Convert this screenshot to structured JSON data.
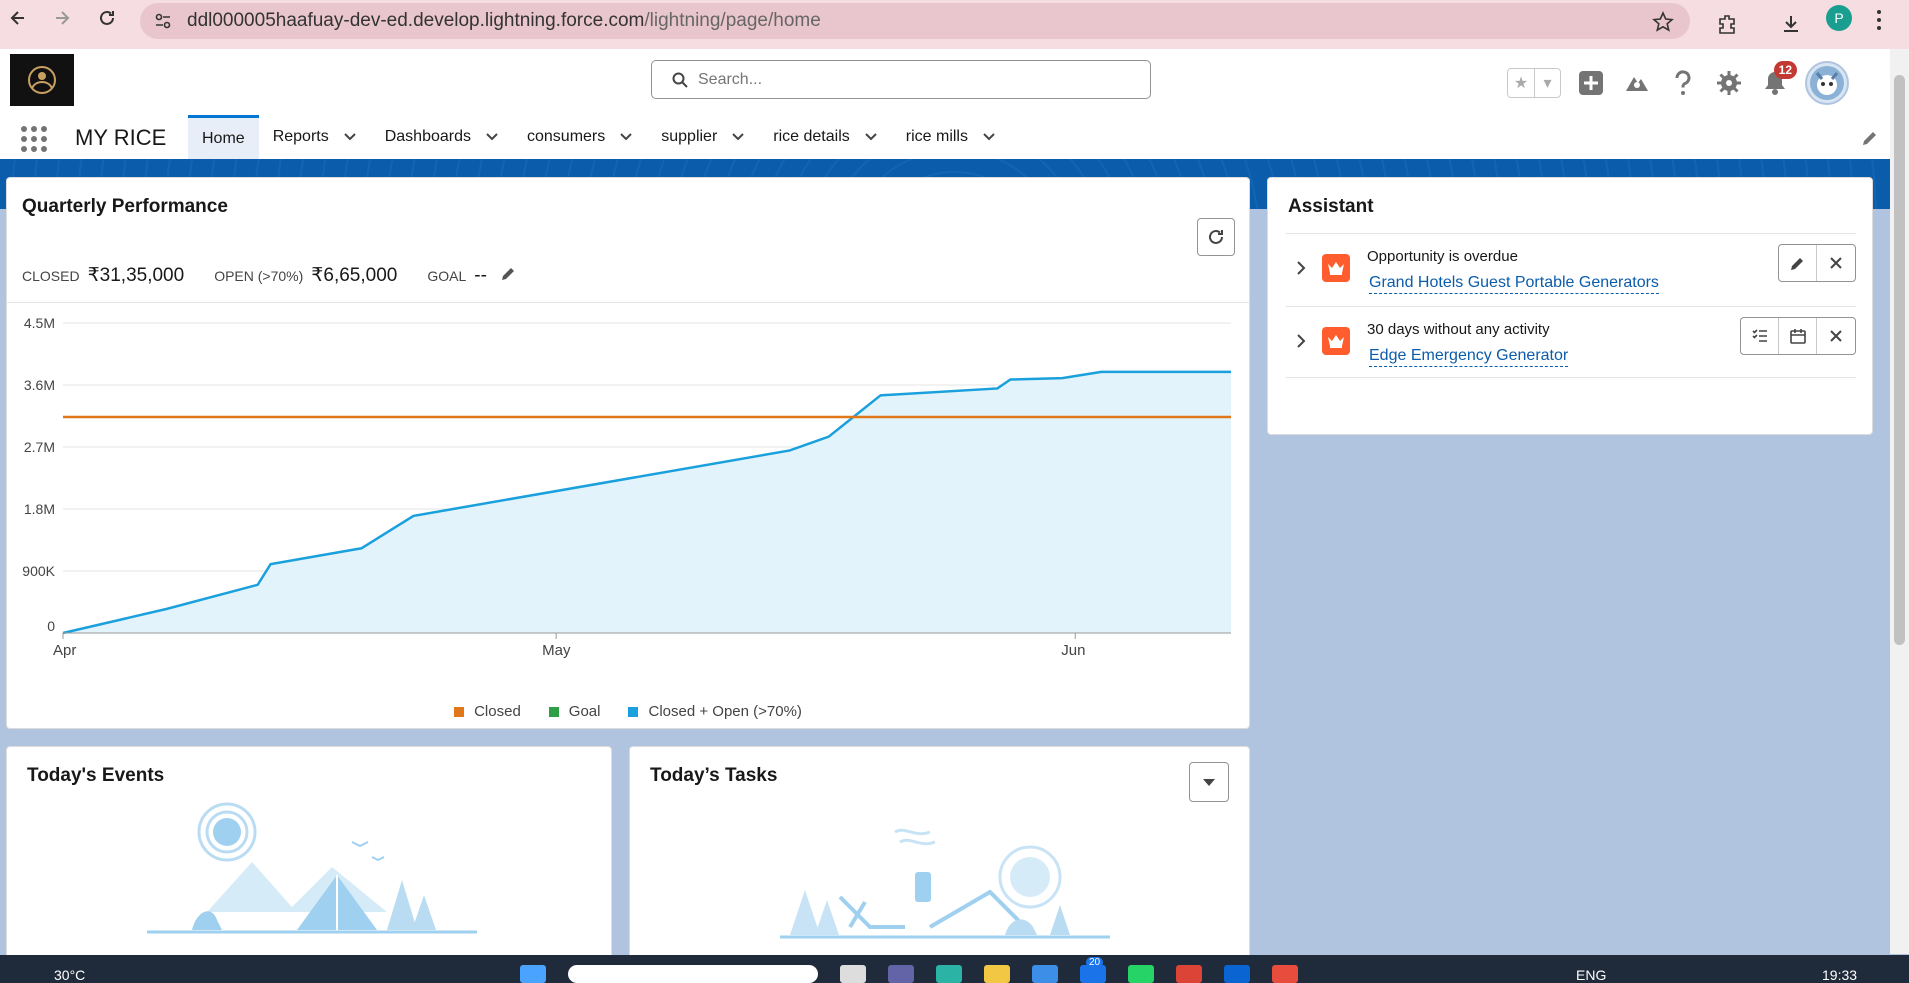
{
  "browser": {
    "url_host": "ddl000005haafuay-dev-ed.develop.lightning.force.com",
    "url_path": "/lightning/page/home",
    "profile_initial": "P"
  },
  "header": {
    "search_placeholder": "Search...",
    "notification_count": "12",
    "app_name": "MY RICE"
  },
  "nav": {
    "tabs": [
      {
        "label": "Home",
        "has_menu": false
      },
      {
        "label": "Reports",
        "has_menu": true
      },
      {
        "label": "Dashboards",
        "has_menu": true
      },
      {
        "label": "consumers",
        "has_menu": true
      },
      {
        "label": "supplier",
        "has_menu": true
      },
      {
        "label": "rice details",
        "has_menu": true
      },
      {
        "label": "rice mills",
        "has_menu": true
      }
    ]
  },
  "quarterly": {
    "title": "Quarterly Performance",
    "closed_label": "CLOSED",
    "closed_value": "₹31,35,000",
    "open_label": "OPEN (>70%)",
    "open_value": "₹6,65,000",
    "goal_label": "GOAL",
    "goal_value": "--"
  },
  "chart_data": {
    "type": "line",
    "ylim": [
      0,
      4500000
    ],
    "yticks": [
      "0",
      "900K",
      "1.8M",
      "2.7M",
      "3.6M",
      "4.5M"
    ],
    "xticks": [
      "Apr",
      "May",
      "Jun"
    ],
    "series": [
      {
        "name": "Closed",
        "color": "#e0781a",
        "values": [
          [
            0,
            3135000
          ],
          [
            90,
            3135000
          ]
        ]
      },
      {
        "name": "Goal",
        "color": "#2e9e47",
        "values": []
      },
      {
        "name": "Closed + Open (>70%)",
        "color": "#1aa0dc",
        "values": [
          [
            0,
            0
          ],
          [
            8,
            350000
          ],
          [
            15,
            700000
          ],
          [
            16,
            1000000
          ],
          [
            23,
            1230000
          ],
          [
            27,
            1700000
          ],
          [
            56,
            2650000
          ],
          [
            59,
            2850000
          ],
          [
            61,
            3150000
          ],
          [
            63,
            3450000
          ],
          [
            72,
            3550000
          ],
          [
            73,
            3680000
          ],
          [
            77,
            3700000
          ],
          [
            80,
            3790000
          ],
          [
            90,
            3790000
          ]
        ]
      }
    ],
    "legend_position": "bottom-center"
  },
  "assistant": {
    "title": "Assistant",
    "items": [
      {
        "subtitle": "Opportunity is overdue",
        "link": "Grand Hotels Guest Portable Generators"
      },
      {
        "subtitle": "30 days without any activity",
        "link": "Edge Emergency Generator"
      }
    ]
  },
  "events": {
    "title": "Today's Events"
  },
  "tasks": {
    "title": "Today’s Tasks"
  },
  "taskbar": {
    "weather": "30°C",
    "lang": "ENG",
    "clock": "19:33",
    "badge": "20"
  }
}
